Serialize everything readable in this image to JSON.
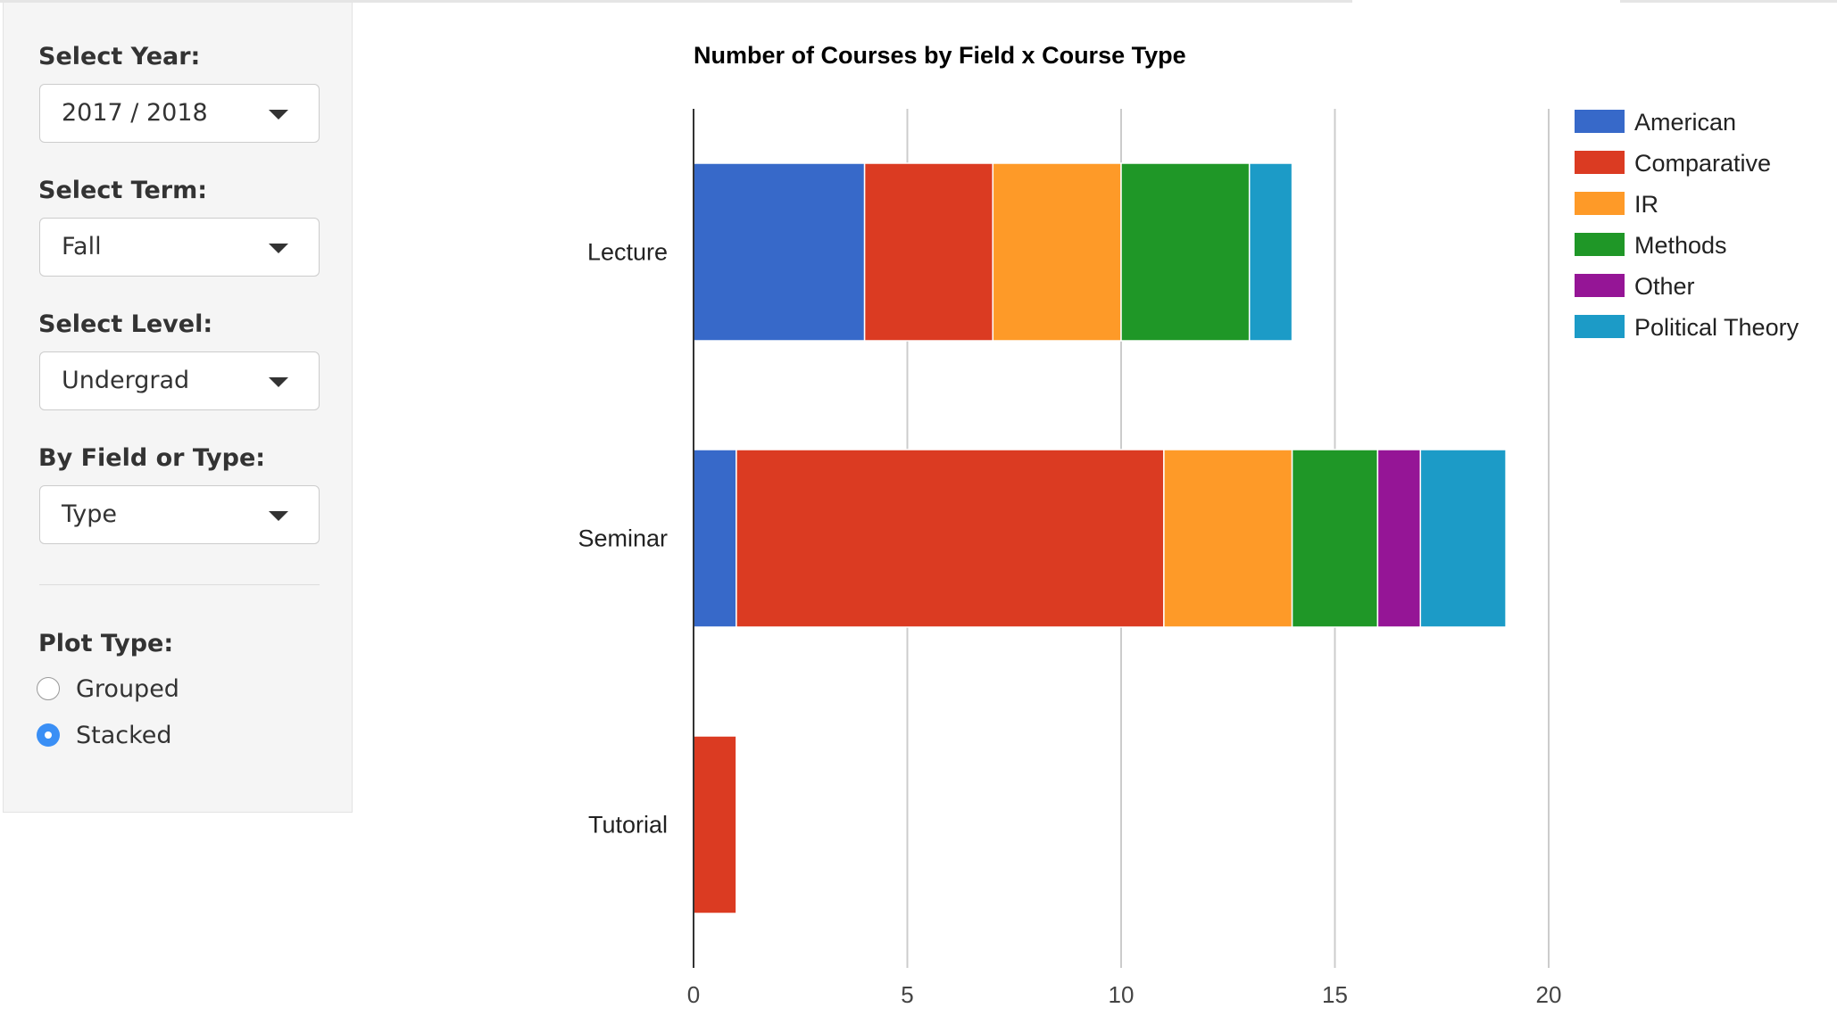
{
  "sidebar": {
    "year": {
      "label": "Select Year:",
      "value": "2017 / 2018"
    },
    "term": {
      "label": "Select Term:",
      "value": "Fall"
    },
    "level": {
      "label": "Select Level:",
      "value": "Undergrad"
    },
    "by": {
      "label": "By Field or Type:",
      "value": "Type"
    },
    "plot_type": {
      "label": "Plot Type:",
      "options": [
        {
          "label": "Grouped",
          "checked": false
        },
        {
          "label": "Stacked",
          "checked": true
        }
      ]
    }
  },
  "chart_data": {
    "type": "bar",
    "orientation": "horizontal",
    "stacked": true,
    "title": "Number of Courses by Field x Course Type",
    "xlabel": "",
    "ylabel": "",
    "categories": [
      "Lecture",
      "Seminar",
      "Tutorial"
    ],
    "series": [
      {
        "name": "American",
        "color": "#3769c9",
        "values": [
          4,
          1,
          0
        ]
      },
      {
        "name": "Comparative",
        "color": "#db3b22",
        "values": [
          3,
          10,
          1
        ]
      },
      {
        "name": "IR",
        "color": "#fe9a28",
        "values": [
          3,
          3,
          0
        ]
      },
      {
        "name": "Methods",
        "color": "#1f9727",
        "values": [
          3,
          2,
          0
        ]
      },
      {
        "name": "Other",
        "color": "#951596",
        "values": [
          0,
          1,
          0
        ]
      },
      {
        "name": "Political Theory",
        "color": "#1c9bc7",
        "values": [
          1,
          2,
          0
        ]
      }
    ],
    "xlim": [
      0,
      20
    ],
    "xticks": [
      0,
      5,
      10,
      15,
      20
    ],
    "grid": true,
    "legend": "right"
  }
}
